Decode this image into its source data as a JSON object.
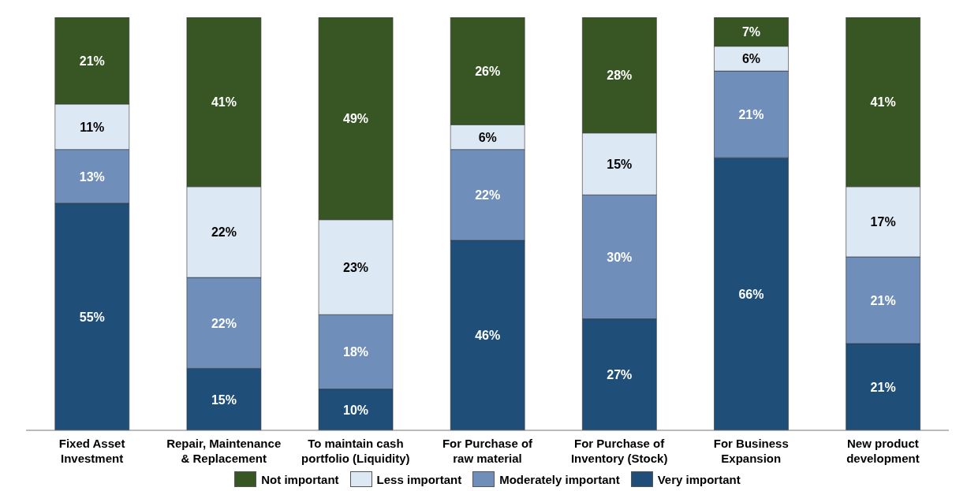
{
  "chart_data": {
    "type": "bar",
    "stacked": true,
    "categories": [
      "Fixed Asset Investment",
      "Repair, Maintenance & Replacement",
      "To maintain cash portfolio (Liquidity)",
      "For Purchase of raw material",
      "For Purchase of Inventory (Stock)",
      "For Business Expansion",
      "New product development"
    ],
    "series": [
      {
        "name": "Very important",
        "color": "#1f4e79",
        "values": [
          55,
          15,
          10,
          46,
          27,
          66,
          21
        ],
        "value_labels": [
          "55%",
          "15%",
          "10%",
          "46%",
          "27%",
          "66%",
          "21%"
        ]
      },
      {
        "name": "Moderately important",
        "color": "#6f8fba",
        "values": [
          13,
          22,
          18,
          22,
          30,
          21,
          21
        ],
        "value_labels": [
          "13%",
          "22%",
          "18%",
          "22%",
          "30%",
          "21%",
          "21%"
        ]
      },
      {
        "name": "Less important",
        "color": "#dde8f5",
        "values": [
          11,
          22,
          23,
          6,
          15,
          6,
          17
        ],
        "value_labels": [
          "11%",
          "22%",
          "23%",
          "6%",
          "15%",
          "6%",
          "17%"
        ]
      },
      {
        "name": "Not important",
        "color": "#375623",
        "values": [
          21,
          41,
          49,
          26,
          28,
          7,
          41
        ],
        "value_labels": [
          "21%",
          "41%",
          "49%",
          "26%",
          "28%",
          "7%",
          "41%"
        ]
      }
    ],
    "ylim": [
      0,
      100
    ],
    "tick_labels": "x",
    "grid": false,
    "legend": "bottom"
  }
}
